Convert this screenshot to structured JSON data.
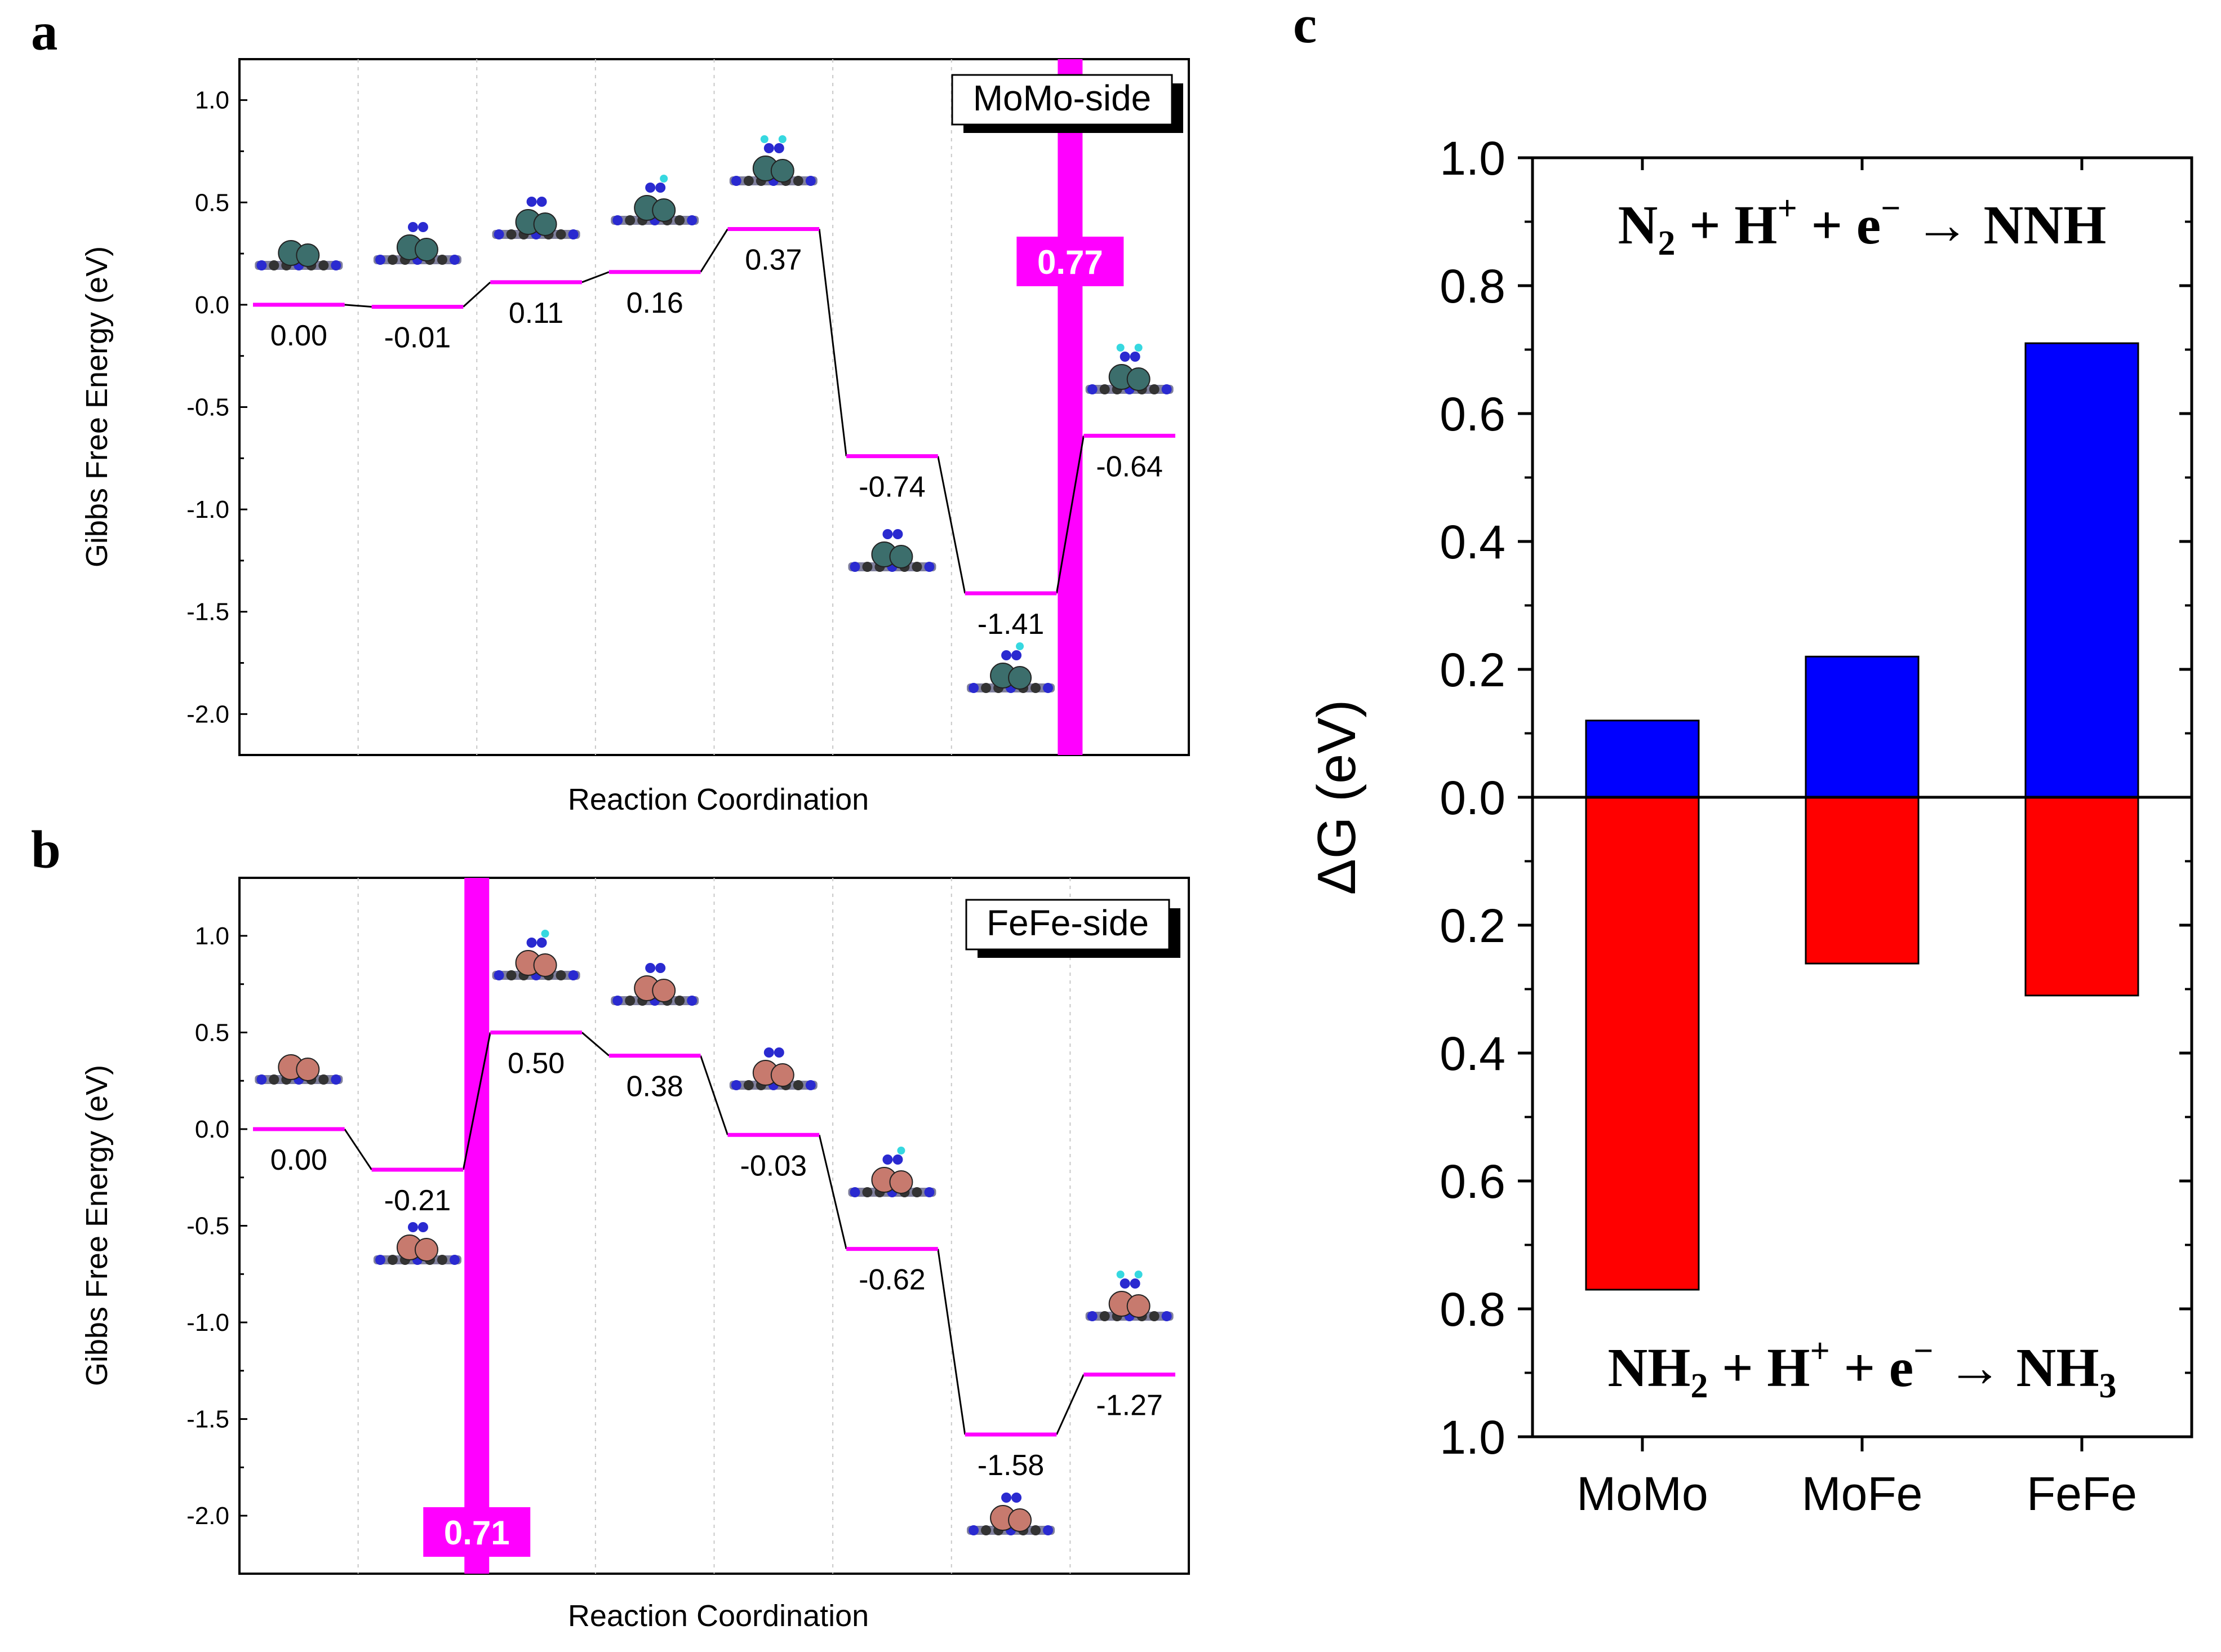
{
  "chart_data": [
    {
      "panel": "a",
      "type": "line",
      "subtype": "free-energy-step-diagram",
      "legend_text": "MoMo-side",
      "legend_position": "top-right",
      "xlabel": "Reaction Coordination",
      "ylabel": "Gibbs Free Energy (eV)",
      "ylim": [
        -2.2,
        1.2
      ],
      "yticks": [
        "1.0",
        "0.5",
        "0.0",
        "-0.5",
        "-1.0",
        "-1.5",
        "-2.0"
      ],
      "ytick_values": [
        1.0,
        0.5,
        0.0,
        -0.5,
        -1.0,
        -1.5,
        -2.0
      ],
      "steps": [
        0.0,
        -0.01,
        0.11,
        0.16,
        0.37,
        -0.74,
        -1.41,
        -0.64
      ],
      "step_labels": [
        "0.00",
        "-0.01",
        "0.11",
        "0.16",
        "0.37",
        "-0.74",
        "-1.41",
        "-0.64"
      ],
      "barrier": {
        "after_step": 6,
        "label": "0.77"
      },
      "metal_color": "#3c6e6c"
    },
    {
      "panel": "b",
      "type": "line",
      "subtype": "free-energy-step-diagram",
      "legend_text": "FeFe-side",
      "legend_position": "top-right",
      "xlabel": "Reaction Coordination",
      "ylabel": "Gibbs Free Energy (eV)",
      "ylim": [
        -2.3,
        1.3
      ],
      "yticks": [
        "1.0",
        "0.5",
        "0.0",
        "-0.5",
        "-1.0",
        "-1.5",
        "-2.0"
      ],
      "ytick_values": [
        1.0,
        0.5,
        0.0,
        -0.5,
        -1.0,
        -1.5,
        -2.0
      ],
      "steps": [
        0.0,
        -0.21,
        0.5,
        0.38,
        -0.03,
        -0.62,
        -1.58,
        -1.27
      ],
      "step_labels": [
        "0.00",
        "-0.21",
        "0.50",
        "0.38",
        "-0.03",
        "-0.62",
        "-1.58",
        "-1.27"
      ],
      "barrier": {
        "after_step": 1,
        "label": "0.71"
      },
      "metal_color": "#c77a6e"
    },
    {
      "panel": "c",
      "type": "bar",
      "categories": [
        "MoMo",
        "MoFe",
        "FeFe"
      ],
      "series": [
        {
          "name": "N2 + H+ + e- -> NNH",
          "values": [
            0.12,
            0.22,
            0.71
          ],
          "color": "#0000ff"
        },
        {
          "name": "NH2 + H+ + e- -> NH3",
          "values": [
            -0.77,
            -0.26,
            -0.31
          ],
          "color": "#ff0000"
        }
      ],
      "ylabel": "ΔG (eV)",
      "ylim": [
        -1.0,
        1.0
      ],
      "yticks": [
        "1.0",
        "0.8",
        "0.6",
        "0.4",
        "0.2",
        "0.0",
        "0.2",
        "0.4",
        "0.6",
        "0.8",
        "1.0"
      ],
      "ytick_values": [
        1.0,
        0.8,
        0.6,
        0.4,
        0.2,
        0.0,
        -0.2,
        -0.4,
        -0.6,
        -0.8,
        -1.0
      ],
      "top_equation": {
        "r1": "N",
        "r1_sub": "2",
        "plus1": " + H",
        "h_sup": "+",
        "plus2": " + e",
        "e_sup": "−",
        "arrow": " → NNH"
      },
      "bottom_equation": {
        "r1": "NH",
        "r1_sub": "2",
        "plus1": " + H",
        "h_sup": "+",
        "plus2": " + e",
        "e_sup": "−",
        "arrow": " → NH",
        "p_sub": "3"
      }
    }
  ],
  "panel_letters": {
    "a": "a",
    "b": "b",
    "c": "c"
  }
}
